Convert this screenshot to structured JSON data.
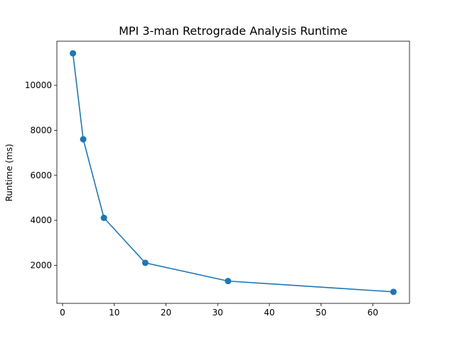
{
  "chart_data": {
    "type": "line",
    "title": "MPI 3-man Retrograde Analysis Runtime",
    "xlabel": "",
    "ylabel": "Runtime (ms)",
    "xlim": [
      -1.1,
      67.1
    ],
    "ylim": [
      310,
      11960
    ],
    "x_ticks": [
      0,
      10,
      20,
      30,
      40,
      50,
      60
    ],
    "y_ticks": [
      2000,
      4000,
      6000,
      8000,
      10000
    ],
    "grid": false,
    "series": [
      {
        "x": [
          2,
          4,
          8,
          16,
          32,
          64
        ],
        "y": [
          11420,
          7600,
          4110,
          2110,
          1300,
          820
        ],
        "color": "#1f77b4",
        "marker": "circle"
      }
    ]
  }
}
